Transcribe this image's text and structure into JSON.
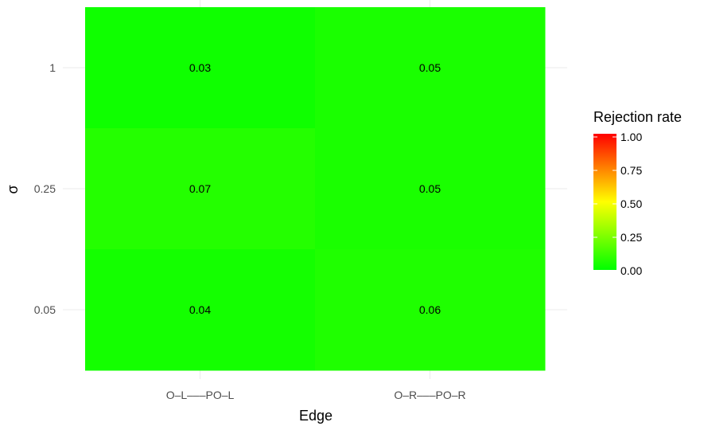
{
  "chart_data": {
    "type": "heatmap",
    "title": "",
    "xlabel": "Edge",
    "ylabel": "σ",
    "x_categories": [
      "O–L–––PO–L",
      "O–R–––PO–R"
    ],
    "y_categories": [
      "0.05",
      "0.25",
      "1"
    ],
    "cells": [
      {
        "x": "O–L–––PO–L",
        "y": "1",
        "value": 0.03,
        "label": "0.03"
      },
      {
        "x": "O–R–––PO–R",
        "y": "1",
        "value": 0.05,
        "label": "0.05"
      },
      {
        "x": "O–L–––PO–L",
        "y": "0.25",
        "value": 0.07,
        "label": "0.07"
      },
      {
        "x": "O–R–––PO–R",
        "y": "0.25",
        "value": 0.05,
        "label": "0.05"
      },
      {
        "x": "O–L–––PO–L",
        "y": "0.05",
        "value": 0.04,
        "label": "0.04"
      },
      {
        "x": "O–R–––PO–R",
        "y": "0.05",
        "value": 0.06,
        "label": "0.06"
      }
    ],
    "color_scale": {
      "low": "#00ff00",
      "mid": "#ffff00",
      "high": "#ff0000",
      "limits": [
        0,
        1
      ]
    },
    "grid": true,
    "legend": {
      "title": "Rejection rate",
      "placement": "right",
      "ticks": [
        "1.00",
        "0.75",
        "0.50",
        "0.25",
        "0.00"
      ]
    }
  }
}
